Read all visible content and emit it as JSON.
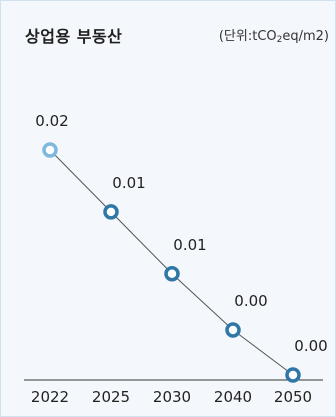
{
  "header": {
    "title": "상업용 부동산",
    "unit_prefix": "(단위:tCO",
    "unit_sub": "2",
    "unit_suffix": "eq/m2)"
  },
  "chart_data": {
    "type": "line",
    "title": "상업용 부동산",
    "unit": "(단위:tCO2eq/m2)",
    "categories": [
      "2022",
      "2025",
      "2030",
      "2040",
      "2050"
    ],
    "x": [
      "2022",
      "2025",
      "2030",
      "2040",
      "2050"
    ],
    "series": [
      {
        "values": [
          0.02,
          0.0145,
          0.009,
          0.004,
          0.0
        ],
        "labels": [
          "0.02",
          "0.01",
          "0.01",
          "0.00",
          "0.00"
        ]
      }
    ],
    "ylim": [
      0.0,
      0.02
    ],
    "grid": false,
    "legend": "none"
  },
  "colors": {
    "background": "#f4f8fc",
    "border": "#cfe0ee",
    "first_marker": "#7eb8dd",
    "marker": "#2f77a6",
    "line": "#555555",
    "axis": "#333333"
  }
}
